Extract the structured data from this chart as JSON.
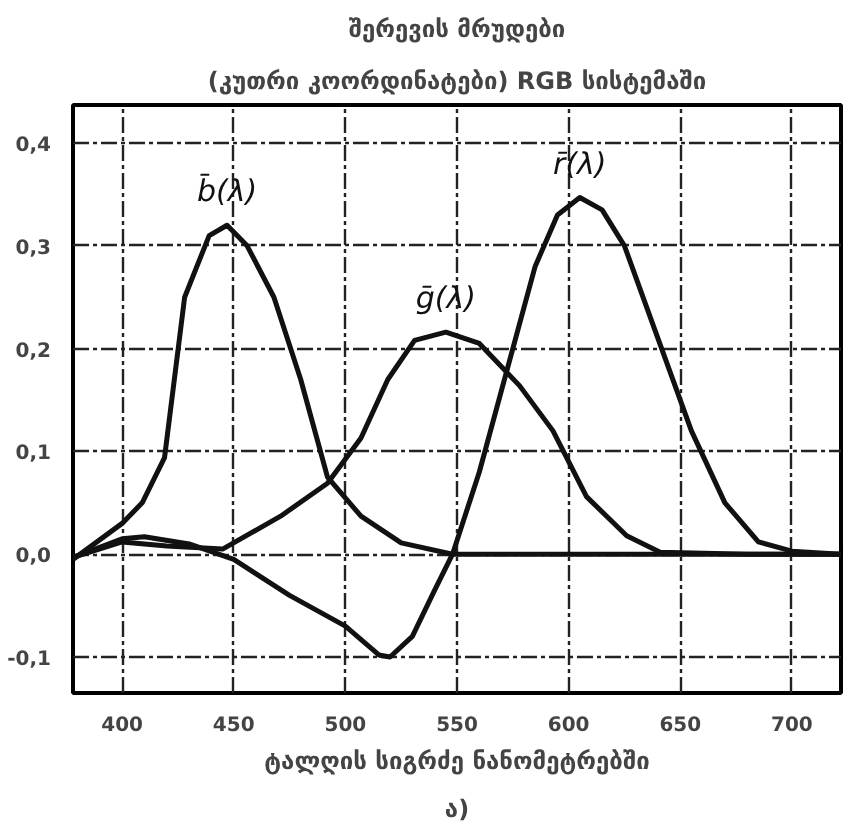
{
  "chart_data": {
    "type": "line",
    "title": "შერევის მრუდები",
    "subtitle": "(კუთრი კოორდინატები) RGB სისტემაში",
    "xlabel": "ტალღის სიგრძე ნანომეტრებში",
    "annotations": [
      "ა)"
    ],
    "xlim": [
      378,
      722
    ],
    "xticks": [
      400,
      450,
      500,
      550,
      600,
      650,
      700
    ],
    "ylim": [
      -0.135,
      0.437
    ],
    "yticks": [
      {
        "value": -0.1,
        "label": "-0,1"
      },
      {
        "value": 0,
        "label": "0,0"
      },
      {
        "value": 0.1,
        "label": "0,1"
      },
      {
        "value": 0.2,
        "label": "0,2"
      },
      {
        "value": 0.3,
        "label": "0,3"
      },
      {
        "value": 0.4,
        "label": "0,4"
      }
    ],
    "grid": true,
    "line_style": "solid",
    "marker": "none",
    "series": [
      {
        "name": "b̄(λ)",
        "color": "#111111",
        "x": [
          378,
          400,
          409,
          419,
          428,
          439,
          447,
          456,
          468,
          480,
          492,
          507,
          525,
          548,
          600,
          650,
          700,
          722
        ],
        "values": [
          -0.005,
          0.03,
          0.05,
          0.094,
          0.25,
          0.31,
          0.32,
          0.3,
          0.25,
          0.17,
          0.075,
          0.037,
          0.011,
          0,
          0,
          0,
          0,
          0
        ]
      },
      {
        "name": "ḡ(λ)",
        "color": "#111111",
        "x": [
          378,
          400,
          420,
          445,
          471,
          492,
          507,
          519,
          531,
          545,
          560,
          578,
          593,
          608,
          626,
          641,
          680,
          722
        ],
        "values": [
          -0.003,
          0.012,
          0.008,
          0.005,
          0.037,
          0.069,
          0.113,
          0.17,
          0.208,
          0.216,
          0.205,
          0.164,
          0.12,
          0.056,
          0.018,
          0.002,
          0,
          0
        ]
      },
      {
        "name": "r̄(λ)",
        "color": "#111111",
        "x": [
          378,
          400,
          410,
          430,
          450,
          475,
          500,
          515,
          520,
          530,
          540,
          548,
          560,
          575,
          585,
          595,
          605,
          615,
          625,
          640,
          655,
          670,
          685,
          700,
          722
        ],
        "values": [
          -0.003,
          0.015,
          0.017,
          0.01,
          -0.005,
          -0.04,
          -0.07,
          -0.098,
          -0.1,
          -0.08,
          -0.035,
          0,
          0.08,
          0.2,
          0.28,
          0.33,
          0.347,
          0.335,
          0.3,
          0.21,
          0.12,
          0.05,
          0.012,
          0.003,
          0
        ]
      }
    ]
  }
}
